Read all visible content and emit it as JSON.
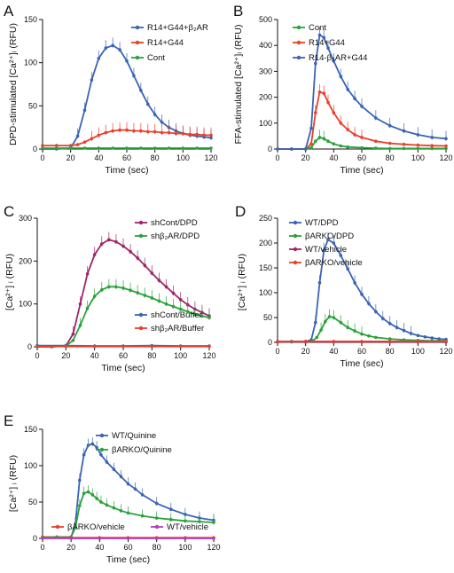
{
  "colors": {
    "blue": "#3a64b4",
    "red": "#e8402c",
    "green": "#2aa23a",
    "purple": "#a02468",
    "magenta": "#b33cc2"
  },
  "chart_data": [
    {
      "panel": "A",
      "type": "line",
      "xlabel": "Time (sec)",
      "ylabel": "DPD-stimulated [Ca²⁺]ᵢ (RFU)",
      "xlim": [
        0,
        120
      ],
      "ylim": [
        0,
        150
      ],
      "xticks": [
        0,
        20,
        40,
        60,
        80,
        100,
        120
      ],
      "yticks": [
        0,
        50,
        100,
        150
      ],
      "legend_position": "top-right",
      "series": [
        {
          "name": "R14+G44+β₂AR",
          "color": "blue",
          "x": [
            0,
            10,
            20,
            25,
            30,
            35,
            40,
            45,
            50,
            55,
            60,
            65,
            70,
            75,
            80,
            85,
            90,
            95,
            100,
            105,
            110,
            115,
            120
          ],
          "y": [
            0,
            0,
            1,
            15,
            45,
            80,
            105,
            117,
            120,
            115,
            102,
            85,
            68,
            52,
            40,
            31,
            25,
            21,
            18,
            16,
            15,
            14,
            13
          ]
        },
        {
          "name": "R14+G44",
          "color": "red",
          "x": [
            0,
            10,
            20,
            25,
            30,
            35,
            40,
            45,
            50,
            55,
            60,
            65,
            70,
            75,
            80,
            85,
            90,
            95,
            100,
            105,
            110,
            115,
            120
          ],
          "y": [
            4,
            4,
            4,
            5,
            8,
            12,
            16,
            19,
            21,
            22,
            22,
            21,
            21,
            20,
            20,
            19,
            19,
            18,
            18,
            17,
            17,
            16,
            16
          ]
        },
        {
          "name": "Cont",
          "color": "green",
          "x": [
            0,
            10,
            20,
            30,
            40,
            50,
            60,
            70,
            80,
            90,
            100,
            110,
            120
          ],
          "y": [
            1,
            1,
            1,
            1,
            1,
            1,
            1,
            1,
            1,
            1,
            1,
            1,
            1
          ]
        }
      ]
    },
    {
      "panel": "B",
      "type": "line",
      "xlabel": "Time (sec)",
      "ylabel": "FFA-stimulated [Ca²⁺]ᵢ (RFU)",
      "xlim": [
        0,
        120
      ],
      "ylim": [
        0,
        500
      ],
      "xticks": [
        0,
        20,
        40,
        60,
        80,
        100,
        120
      ],
      "yticks": [
        0,
        100,
        200,
        300,
        400,
        500
      ],
      "legend_position": "top-right",
      "series": [
        {
          "name": "Cont",
          "color": "green",
          "x": [
            0,
            10,
            20,
            24,
            27,
            30,
            33,
            36,
            40,
            45,
            50,
            60,
            70,
            80,
            90,
            100,
            110,
            120
          ],
          "y": [
            0,
            0,
            0,
            5,
            30,
            45,
            40,
            30,
            20,
            12,
            8,
            5,
            3,
            2,
            2,
            2,
            2,
            2
          ]
        },
        {
          "name": "R14+G44",
          "color": "red",
          "x": [
            0,
            10,
            20,
            24,
            27,
            30,
            33,
            36,
            40,
            45,
            50,
            55,
            60,
            70,
            80,
            90,
            100,
            110,
            120
          ],
          "y": [
            0,
            0,
            0,
            20,
            140,
            220,
            215,
            180,
            140,
            100,
            75,
            55,
            45,
            30,
            22,
            18,
            15,
            13,
            12
          ]
        },
        {
          "name": "R14-β₂AR+G44",
          "color": "blue",
          "x": [
            0,
            10,
            20,
            24,
            27,
            30,
            33,
            36,
            40,
            45,
            50,
            55,
            60,
            70,
            80,
            90,
            100,
            110,
            120
          ],
          "y": [
            0,
            0,
            0,
            80,
            330,
            440,
            430,
            390,
            340,
            280,
            230,
            195,
            165,
            120,
            90,
            70,
            55,
            45,
            40
          ]
        }
      ]
    },
    {
      "panel": "C",
      "type": "line",
      "xlabel": "Time (sec)",
      "ylabel": "[Ca²⁺] ᵢ (RFU)",
      "xlim": [
        0,
        120
      ],
      "ylim": [
        0,
        300
      ],
      "xticks": [
        0,
        20,
        40,
        60,
        80,
        100,
        120
      ],
      "yticks": [
        0,
        100,
        200,
        300
      ],
      "legend_position": "top-right",
      "series": [
        {
          "name": "shCont/DPD",
          "color": "purple",
          "x": [
            0,
            10,
            20,
            25,
            30,
            35,
            40,
            45,
            50,
            55,
            60,
            65,
            70,
            75,
            80,
            85,
            90,
            95,
            100,
            105,
            110,
            115,
            120
          ],
          "y": [
            0,
            0,
            2,
            30,
            100,
            170,
            215,
            240,
            250,
            245,
            235,
            222,
            207,
            190,
            172,
            155,
            140,
            125,
            110,
            98,
            88,
            80,
            72
          ]
        },
        {
          "name": "shβ₂AR/DPD",
          "color": "green",
          "x": [
            0,
            10,
            20,
            25,
            30,
            35,
            40,
            45,
            50,
            55,
            60,
            65,
            70,
            75,
            80,
            85,
            90,
            95,
            100,
            105,
            110,
            115,
            120
          ],
          "y": [
            0,
            0,
            2,
            15,
            50,
            90,
            118,
            133,
            140,
            140,
            137,
            132,
            126,
            120,
            114,
            107,
            100,
            94,
            88,
            82,
            76,
            72,
            68
          ]
        },
        {
          "name": "shCont/Buffer",
          "color": "blue",
          "x": [
            0,
            20,
            40,
            60,
            80,
            100,
            120
          ],
          "y": [
            3,
            3,
            2,
            2,
            3,
            2,
            2
          ]
        },
        {
          "name": "shβ₂AR/Buffer",
          "color": "red",
          "x": [
            0,
            20,
            40,
            60,
            80,
            100,
            120
          ],
          "y": [
            1,
            1,
            1,
            1,
            1,
            1,
            1
          ]
        }
      ]
    },
    {
      "panel": "D",
      "type": "line",
      "xlabel": "Time (sec)",
      "ylabel": "[Ca²⁺] ᵢ (RFU)",
      "xlim": [
        0,
        120
      ],
      "ylim": [
        0,
        250
      ],
      "xticks": [
        0,
        20,
        40,
        60,
        80,
        100,
        120
      ],
      "yticks": [
        0,
        50,
        100,
        150,
        200,
        250
      ],
      "legend_position": "top-right",
      "series": [
        {
          "name": "WT/DPD",
          "color": "blue",
          "x": [
            0,
            10,
            20,
            24,
            27,
            30,
            33,
            36,
            40,
            45,
            50,
            55,
            60,
            65,
            70,
            75,
            80,
            85,
            90,
            95,
            100,
            105,
            110,
            115,
            120
          ],
          "y": [
            2,
            2,
            2,
            5,
            40,
            120,
            185,
            207,
            200,
            175,
            148,
            120,
            97,
            78,
            62,
            48,
            38,
            30,
            24,
            18,
            14,
            11,
            9,
            7,
            6
          ]
        },
        {
          "name": "βARKO/DPD",
          "color": "green",
          "x": [
            0,
            10,
            20,
            25,
            28,
            31,
            34,
            37,
            40,
            45,
            50,
            55,
            60,
            65,
            70,
            80,
            90,
            100,
            110,
            120
          ],
          "y": [
            1,
            1,
            1,
            3,
            10,
            25,
            42,
            52,
            50,
            40,
            30,
            23,
            17,
            13,
            10,
            7,
            5,
            4,
            3,
            3
          ]
        },
        {
          "name": "WT/vehicle",
          "color": "purple",
          "x": [
            0,
            20,
            40,
            60,
            80,
            100,
            120
          ],
          "y": [
            1,
            1,
            1,
            1,
            1,
            1,
            1
          ]
        },
        {
          "name": "βARKO/vehicle",
          "color": "red",
          "x": [
            0,
            20,
            40,
            60,
            80,
            100,
            120
          ],
          "y": [
            2,
            2,
            2,
            2,
            2,
            2,
            2
          ]
        }
      ]
    },
    {
      "panel": "E",
      "type": "line",
      "xlabel": "Time (sec)",
      "ylabel": "[Ca²⁺] ᵢ (RFU)",
      "xlim": [
        0,
        120
      ],
      "ylim": [
        0,
        150
      ],
      "xticks": [
        0,
        20,
        40,
        60,
        80,
        100,
        120
      ],
      "yticks": [
        0,
        50,
        100,
        150
      ],
      "legend_position": "top-center",
      "series": [
        {
          "name": "WT/Quinine",
          "color": "blue",
          "x": [
            0,
            10,
            20,
            23,
            26,
            29,
            32,
            35,
            38,
            41,
            45,
            50,
            55,
            60,
            65,
            70,
            80,
            90,
            100,
            110,
            120
          ],
          "y": [
            2,
            2,
            2,
            20,
            80,
            115,
            128,
            130,
            125,
            115,
            105,
            95,
            85,
            75,
            68,
            60,
            48,
            40,
            33,
            28,
            25
          ]
        },
        {
          "name": "βARKO/Quinine",
          "color": "green",
          "x": [
            0,
            10,
            20,
            23,
            26,
            29,
            32,
            35,
            38,
            41,
            45,
            50,
            55,
            60,
            70,
            80,
            90,
            100,
            110,
            120
          ],
          "y": [
            2,
            2,
            2,
            15,
            45,
            62,
            64,
            60,
            55,
            50,
            46,
            42,
            38,
            35,
            31,
            28,
            26,
            24,
            23,
            22
          ]
        },
        {
          "name": "βARKO/vehicle",
          "color": "red",
          "x": [
            0,
            20,
            40,
            60,
            80,
            100,
            120
          ],
          "y": [
            1,
            1,
            1,
            1,
            1,
            1,
            1
          ]
        },
        {
          "name": "WT/vehicle",
          "color": "magenta",
          "x": [
            0,
            20,
            40,
            60,
            80,
            100,
            120
          ],
          "y": [
            0,
            0,
            0,
            0,
            0,
            0,
            0
          ]
        }
      ]
    }
  ]
}
